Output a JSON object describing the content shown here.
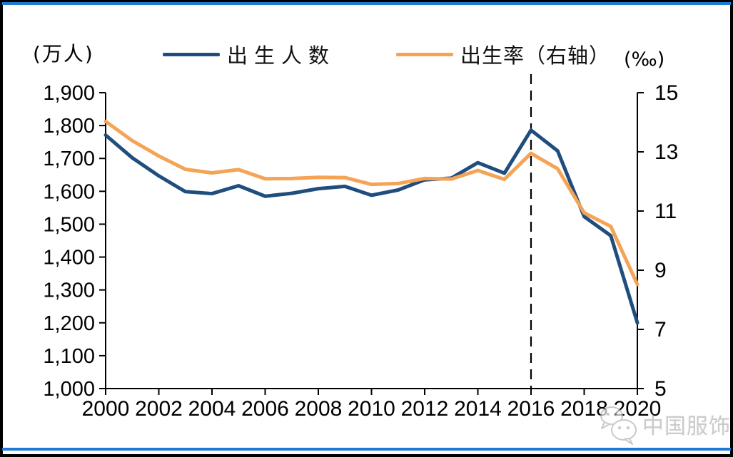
{
  "header": {
    "left_unit": "(万人)",
    "right_unit": "(‰)"
  },
  "legend": [
    {
      "label": "出生人数",
      "color": "#1f4e7e"
    },
    {
      "label": "出生率（右轴）",
      "color": "#f5a355"
    }
  ],
  "watermark": {
    "text": "中国服饰",
    "icon": "wechat-icon"
  },
  "accent_colors": {
    "frame_rule_blue": "#2079d2",
    "frame_border": "#000000",
    "axis": "#000000",
    "watermark_gray": "#b3b3b3"
  },
  "chart_data": {
    "type": "line",
    "title": "",
    "x": [
      2000,
      2001,
      2002,
      2003,
      2004,
      2005,
      2006,
      2007,
      2008,
      2009,
      2010,
      2011,
      2012,
      2013,
      2014,
      2015,
      2016,
      2017,
      2018,
      2019,
      2020
    ],
    "x_tick_labels": [
      "2000",
      "2002",
      "2004",
      "2006",
      "2008",
      "2010",
      "2012",
      "2014",
      "2016",
      "2018",
      "2020"
    ],
    "left_axis": {
      "unit": "万人",
      "min": 1000,
      "max": 1900,
      "step": 100,
      "tick_labels": [
        "1,900",
        "1,800",
        "1,700",
        "1,600",
        "1,500",
        "1,400",
        "1,300",
        "1,200",
        "1,100",
        "1,000"
      ]
    },
    "right_axis": {
      "unit": "‰",
      "min": 5,
      "max": 15,
      "step": 2,
      "tick_labels": [
        "15",
        "13",
        "11",
        "9",
        "7",
        "5"
      ]
    },
    "series": [
      {
        "name": "出生人数",
        "axis": "left",
        "color": "#1f4e7e",
        "values": [
          1771,
          1702,
          1647,
          1599,
          1593,
          1617,
          1585,
          1594,
          1608,
          1615,
          1588,
          1604,
          1635,
          1640,
          1687,
          1655,
          1786,
          1723,
          1523,
          1465,
          1200
        ]
      },
      {
        "name": "出生率（右轴）",
        "axis": "right",
        "color": "#f5a355",
        "values": [
          14.03,
          13.38,
          12.86,
          12.41,
          12.29,
          12.4,
          12.09,
          12.1,
          12.14,
          12.13,
          11.9,
          11.93,
          12.1,
          12.08,
          12.37,
          12.07,
          12.95,
          12.43,
          10.94,
          10.48,
          8.52
        ]
      }
    ],
    "annotations": [
      {
        "type": "vline-dashed",
        "x": 2016
      }
    ],
    "legend_position": "top",
    "grid": false
  }
}
